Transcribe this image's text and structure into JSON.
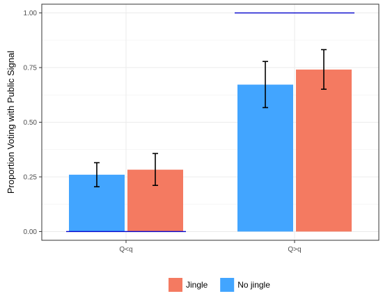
{
  "chart_data": {
    "type": "bar",
    "title": "",
    "xlabel": "",
    "ylabel": "Proportion Voting with Public Signal",
    "categories": [
      "Q<q",
      "Q>q"
    ],
    "ylim": [
      -0.04,
      1.04
    ],
    "yticks": [
      {
        "value": 0.0,
        "label": "0.00"
      },
      {
        "value": 0.25,
        "label": "0.25"
      },
      {
        "value": 0.5,
        "label": "0.50"
      },
      {
        "value": 0.75,
        "label": "0.75"
      },
      {
        "value": 1.0,
        "label": "1.00"
      }
    ],
    "series": [
      {
        "name": "No jingle",
        "color": "#42a5ff",
        "values": [
          0.26,
          0.672
        ],
        "errors": [
          [
            0.205,
            0.315
          ],
          [
            0.567,
            0.778
          ]
        ]
      },
      {
        "name": "Jingle",
        "color": "#f47a61",
        "values": [
          0.283,
          0.741
        ],
        "errors": [
          [
            0.211,
            0.357
          ],
          [
            0.651,
            0.832
          ]
        ]
      }
    ],
    "reference_lines": [
      {
        "category": "Q<q",
        "value": 0.0,
        "color": "#0000cc"
      },
      {
        "category": "Q>q",
        "value": 1.0,
        "color": "#0000cc"
      }
    ],
    "legend": {
      "position": "bottom",
      "items": [
        "Jingle",
        "No jingle"
      ]
    },
    "grid": true
  }
}
